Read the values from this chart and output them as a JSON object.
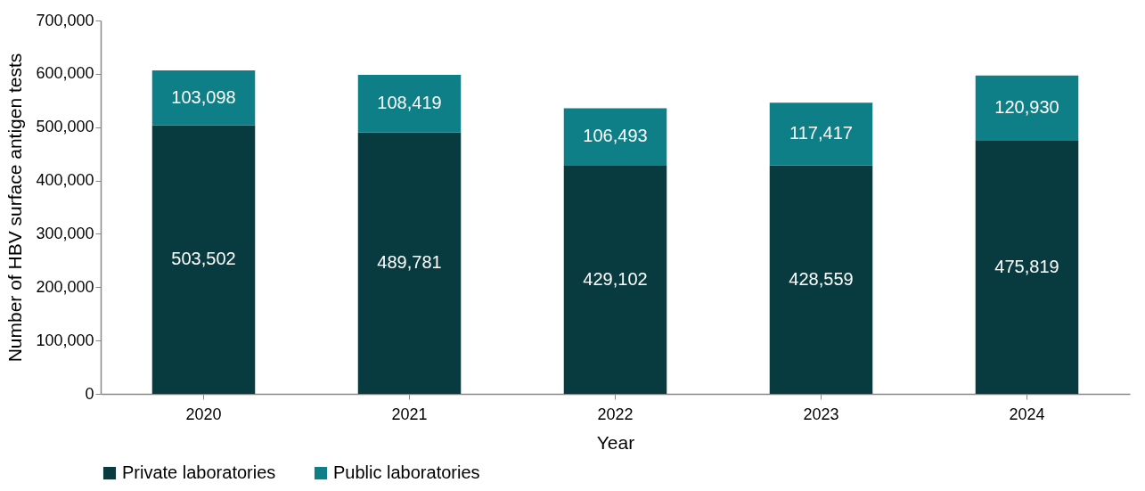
{
  "chart_data": {
    "type": "bar",
    "stacked": true,
    "xlabel": "Year",
    "ylabel": "Number of HBV surface antigen tests",
    "categories": [
      "2020",
      "2021",
      "2022",
      "2023",
      "2024"
    ],
    "series": [
      {
        "name": "Private laboratories",
        "color": "#073b3f",
        "values": [
          503502,
          489781,
          429102,
          428559,
          475819
        ],
        "value_labels": [
          "503,502",
          "489,781",
          "429,102",
          "428,559",
          "475,819"
        ]
      },
      {
        "name": "Public laboratories",
        "color": "#0e7f86",
        "values": [
          103098,
          108419,
          106493,
          117417,
          120930
        ],
        "value_labels": [
          "103,098",
          "108,419",
          "106,493",
          "117,417",
          "120,930"
        ]
      }
    ],
    "ylim": [
      0,
      700000
    ],
    "yticks": [
      0,
      {
        "value": 100000,
        "label": "100,000"
      },
      {
        "value": 200000,
        "label": "200,000"
      },
      {
        "value": 300000,
        "label": "300,000"
      },
      {
        "value": 400000,
        "label": "400,000"
      },
      {
        "value": 500000,
        "label": "500,000"
      },
      {
        "value": 600000,
        "label": "600,000"
      },
      {
        "value": 700000,
        "label": "700,000"
      }
    ],
    "legend": "bottom",
    "grid": false
  }
}
